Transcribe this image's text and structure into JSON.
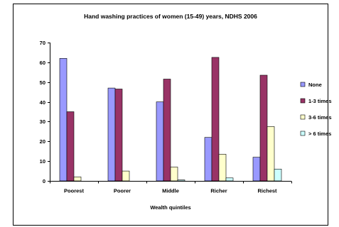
{
  "chart_data": {
    "type": "bar",
    "title": "Hand washing practices of women (15-49) years, NDHS 2006",
    "xlabel": "Wealth quintiles",
    "ylabel": "",
    "ylim": [
      0,
      70
    ],
    "yticks": [
      0,
      10,
      20,
      30,
      40,
      50,
      60,
      70
    ],
    "grid": false,
    "legend_position": "right",
    "categories": [
      "Poorest",
      "Poorer",
      "Middle",
      "Richer",
      "Richest"
    ],
    "series": [
      {
        "name": "None",
        "color": "#9999ff",
        "values": [
          62,
          47,
          40,
          22,
          12
        ]
      },
      {
        "name": "1-3 times",
        "color": "#993366",
        "values": [
          35,
          46.5,
          51.5,
          62.5,
          53.5
        ]
      },
      {
        "name": "3-6 times",
        "color": "#ffffcc",
        "values": [
          2,
          5,
          7,
          13.5,
          27.5
        ]
      },
      {
        "name": "> 6 times",
        "color": "#ccffff",
        "values": [
          0,
          0,
          0.5,
          1.5,
          6
        ]
      }
    ]
  }
}
